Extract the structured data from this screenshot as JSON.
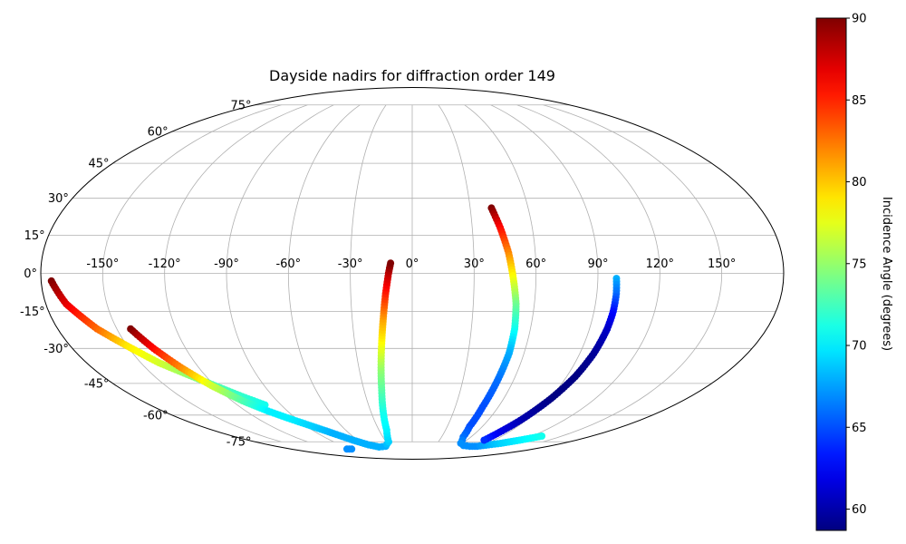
{
  "chart_data": {
    "type": "scatter",
    "projection": "mollweide",
    "title": "Dayside nadirs for diffraction order 149",
    "grid": true,
    "lon_ticks": [
      "-150°",
      "-120°",
      "-90°",
      "-60°",
      "-30°",
      "0°",
      "30°",
      "60°",
      "90°",
      "120°",
      "150°"
    ],
    "lon_tick_values": [
      -150,
      -120,
      -90,
      -60,
      -30,
      0,
      30,
      60,
      90,
      120,
      150
    ],
    "lat_ticks": [
      "75°",
      "60°",
      "45°",
      "30°",
      "15°",
      "0°",
      "-15°",
      "-30°",
      "-45°",
      "-60°",
      "-75°"
    ],
    "lat_tick_values": [
      75,
      60,
      45,
      30,
      15,
      0,
      -15,
      -30,
      -45,
      -60,
      -75
    ],
    "colorbar": {
      "label": "Incidence Angle (degrees)",
      "colormap": "jet",
      "range": [
        58.7,
        90
      ],
      "ticks": [
        "90",
        "85",
        "80",
        "75",
        "70",
        "65",
        "60"
      ],
      "tick_values": [
        90,
        85,
        80,
        75,
        70,
        65,
        60
      ]
    },
    "tracks": [
      {
        "points": [
          {
            "lon": -175,
            "lat": -3,
            "inc": 90
          },
          {
            "lon": -170,
            "lat": -12,
            "inc": 87
          },
          {
            "lon": -160,
            "lat": -22,
            "inc": 83
          },
          {
            "lon": -150,
            "lat": -29,
            "inc": 79
          },
          {
            "lon": -140,
            "lat": -36,
            "inc": 77
          },
          {
            "lon": -130,
            "lat": -41,
            "inc": 75
          },
          {
            "lon": -120,
            "lat": -46,
            "inc": 73
          },
          {
            "lon": -110,
            "lat": -51,
            "inc": 72
          },
          {
            "lon": -101,
            "lat": -55,
            "inc": 71
          }
        ]
      },
      {
        "points": [
          {
            "lon": -143,
            "lat": -22,
            "inc": 90
          },
          {
            "lon": -137,
            "lat": -30,
            "inc": 86
          },
          {
            "lon": -130,
            "lat": -38,
            "inc": 82
          },
          {
            "lon": -122,
            "lat": -46,
            "inc": 77
          },
          {
            "lon": -113,
            "lat": -53,
            "inc": 73
          },
          {
            "lon": -104,
            "lat": -58,
            "inc": 70
          },
          {
            "lon": -95,
            "lat": -62,
            "inc": 70
          },
          {
            "lon": -85,
            "lat": -66,
            "inc": 69
          },
          {
            "lon": -75,
            "lat": -70,
            "inc": 68
          },
          {
            "lon": -65,
            "lat": -74,
            "inc": 68
          },
          {
            "lon": -55,
            "lat": -77,
            "inc": 68
          },
          {
            "lon": -45,
            "lat": -78.5,
            "inc": 68
          },
          {
            "lon": -35,
            "lat": -78,
            "inc": 68
          },
          {
            "lon": -27,
            "lat": -75,
            "inc": 69
          },
          {
            "lon": -23,
            "lat": -68,
            "inc": 70
          },
          {
            "lon": -21,
            "lat": -58,
            "inc": 71
          },
          {
            "lon": -19,
            "lat": -48,
            "inc": 73
          },
          {
            "lon": -17.5,
            "lat": -38,
            "inc": 75
          },
          {
            "lon": -16,
            "lat": -28,
            "inc": 78
          },
          {
            "lon": -14.5,
            "lat": -18,
            "inc": 81
          },
          {
            "lon": -13,
            "lat": -8,
            "inc": 85
          },
          {
            "lon": -11.5,
            "lat": 0,
            "inc": 88
          },
          {
            "lon": -10.5,
            "lat": 4,
            "inc": 90
          }
        ]
      },
      {
        "points": [
          {
            "lon": -97,
            "lat": -80,
            "inc": 67
          },
          {
            "lon": -90,
            "lat": -80,
            "inc": 67
          }
        ]
      },
      {
        "points": [
          {
            "lon": 41,
            "lat": 26,
            "inc": 90
          },
          {
            "lon": 44,
            "lat": 18,
            "inc": 86
          },
          {
            "lon": 47,
            "lat": 8,
            "inc": 82
          },
          {
            "lon": 49,
            "lat": -2,
            "inc": 78
          },
          {
            "lon": 51,
            "lat": -12,
            "inc": 74
          },
          {
            "lon": 52,
            "lat": -22,
            "inc": 71
          },
          {
            "lon": 52,
            "lat": -32,
            "inc": 68
          },
          {
            "lon": 50.5,
            "lat": -44,
            "inc": 66
          },
          {
            "lon": 49,
            "lat": -56,
            "inc": 65
          },
          {
            "lon": 49,
            "lat": -66,
            "inc": 65
          },
          {
            "lon": 52,
            "lat": -72,
            "inc": 66
          },
          {
            "lon": 58,
            "lat": -76,
            "inc": 67
          },
          {
            "lon": 66,
            "lat": -77.5,
            "inc": 67
          },
          {
            "lon": 76,
            "lat": -78,
            "inc": 67
          },
          {
            "lon": 86,
            "lat": -78,
            "inc": 67
          },
          {
            "lon": 96,
            "lat": -77,
            "inc": 68
          },
          {
            "lon": 106,
            "lat": -76,
            "inc": 69
          },
          {
            "lon": 118,
            "lat": -74,
            "inc": 70
          },
          {
            "lon": 130,
            "lat": -71.5,
            "inc": 71
          }
        ]
      },
      {
        "points": [
          {
            "lon": 99,
            "lat": -2,
            "inc": 68
          },
          {
            "lon": 99.5,
            "lat": -8,
            "inc": 66
          },
          {
            "lon": 99.5,
            "lat": -15,
            "inc": 63
          },
          {
            "lon": 99,
            "lat": -22,
            "inc": 61
          },
          {
            "lon": 97.5,
            "lat": -32,
            "inc": 59.5
          },
          {
            "lon": 95,
            "lat": -42,
            "inc": 58.8
          },
          {
            "lon": 91,
            "lat": -52,
            "inc": 58.8
          },
          {
            "lon": 86,
            "lat": -62,
            "inc": 60
          },
          {
            "lon": 81,
            "lat": -70,
            "inc": 62
          },
          {
            "lon": 79,
            "lat": -74,
            "inc": 64
          }
        ]
      }
    ]
  }
}
